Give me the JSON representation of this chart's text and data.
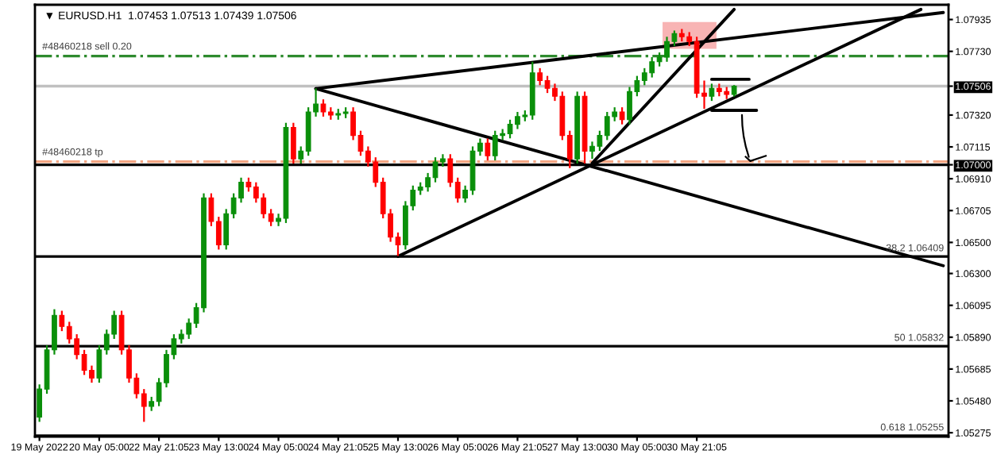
{
  "chart_data": {
    "type": "candlestick",
    "title": "▼ EURUSD.H1  1.07453 1.07513 1.07439 1.07506",
    "categories": [
      "19 May 2022",
      null,
      null,
      null,
      null,
      null,
      null,
      null,
      "20 May 05:00",
      null,
      null,
      null,
      null,
      null,
      null,
      null,
      "22 May 21:05",
      null,
      null,
      null,
      null,
      null,
      null,
      null,
      "23 May 13:00",
      null,
      null,
      null,
      null,
      null,
      null,
      null,
      "24 May 05:00",
      null,
      null,
      null,
      null,
      null,
      null,
      null,
      "24 May 21:05",
      null,
      null,
      null,
      null,
      null,
      null,
      null,
      "25 May 13:00",
      null,
      null,
      null,
      null,
      null,
      null,
      null,
      "26 May 05:00",
      null,
      null,
      null,
      null,
      null,
      null,
      null,
      "26 May 21:05",
      null,
      null,
      null,
      null,
      null,
      null,
      null,
      "27 May 13:00",
      null,
      null,
      null,
      null,
      null,
      null,
      null,
      "30 May 05:00",
      null,
      null,
      null,
      null,
      null,
      null,
      null,
      "30 May 21:05",
      null,
      null,
      null,
      null,
      null,
      null,
      null,
      null,
      null,
      null,
      null,
      null,
      null,
      null,
      null,
      null,
      null,
      null,
      null,
      null,
      null,
      null,
      null,
      null,
      null,
      null,
      null,
      null,
      null,
      null,
      null,
      null,
      null
    ],
    "ohlc": [
      [
        1.05375,
        1.05586,
        1.05345,
        1.05556
      ],
      [
        1.05556,
        1.05838,
        1.05526,
        1.05808
      ],
      [
        1.05808,
        1.0607,
        1.05778,
        1.0603
      ],
      [
        1.0603,
        1.0606,
        1.05929,
        1.05959
      ],
      [
        1.05959,
        1.05989,
        1.05849,
        1.05879
      ],
      [
        1.05879,
        1.05909,
        1.05748,
        1.05778
      ],
      [
        1.05778,
        1.05808,
        1.05647,
        1.05677
      ],
      [
        1.05677,
        1.05707,
        1.05597,
        1.05627
      ],
      [
        1.05627,
        1.05838,
        1.05597,
        1.05808
      ],
      [
        1.05808,
        1.05939,
        1.05778,
        1.05909
      ],
      [
        1.05909,
        1.0606,
        1.05879,
        1.0603
      ],
      [
        1.0603,
        1.0606,
        1.05778,
        1.05808
      ],
      [
        1.05808,
        1.05838,
        1.05597,
        1.05627
      ],
      [
        1.05627,
        1.05657,
        1.05496,
        1.05526
      ],
      [
        1.05526,
        1.05556,
        1.05345,
        1.05445
      ],
      [
        1.05445,
        1.05506,
        1.05415,
        1.05476
      ],
      [
        1.05476,
        1.05627,
        1.05446,
        1.05597
      ],
      [
        1.05597,
        1.05808,
        1.05567,
        1.05778
      ],
      [
        1.05778,
        1.05909,
        1.05748,
        1.05879
      ],
      [
        1.05879,
        1.05939,
        1.05849,
        1.05909
      ],
      [
        1.05909,
        1.0601,
        1.05879,
        1.0598
      ],
      [
        1.0598,
        1.0611,
        1.0595,
        1.0608
      ],
      [
        1.0608,
        1.06816,
        1.0605,
        1.06786
      ],
      [
        1.06786,
        1.06816,
        1.06605,
        1.06635
      ],
      [
        1.06635,
        1.06665,
        1.06454,
        1.06484
      ],
      [
        1.06484,
        1.06715,
        1.06454,
        1.06685
      ],
      [
        1.06685,
        1.06816,
        1.06655,
        1.06786
      ],
      [
        1.06786,
        1.06917,
        1.06756,
        1.06887
      ],
      [
        1.06887,
        1.06917,
        1.06827,
        1.06857
      ],
      [
        1.06857,
        1.06887,
        1.06756,
        1.06786
      ],
      [
        1.06786,
        1.06816,
        1.06655,
        1.06685
      ],
      [
        1.06685,
        1.06715,
        1.06605,
        1.06635
      ],
      [
        1.06635,
        1.06685,
        1.06605,
        1.06655
      ],
      [
        1.06655,
        1.0727,
        1.06625,
        1.0724
      ],
      [
        1.0724,
        1.0727,
        1.07008,
        1.07038
      ],
      [
        1.07038,
        1.07118,
        1.07008,
        1.07088
      ],
      [
        1.07088,
        1.0737,
        1.07058,
        1.0734
      ],
      [
        1.0734,
        1.07492,
        1.0731,
        1.07391
      ],
      [
        1.07391,
        1.07421,
        1.0731,
        1.0734
      ],
      [
        1.0734,
        1.0737,
        1.0729,
        1.0732
      ],
      [
        1.0732,
        1.0736,
        1.0729,
        1.0733
      ],
      [
        1.0733,
        1.0737,
        1.073,
        1.0734
      ],
      [
        1.0734,
        1.0737,
        1.07159,
        1.07189
      ],
      [
        1.07189,
        1.07219,
        1.07058,
        1.07088
      ],
      [
        1.07088,
        1.07118,
        1.06988,
        1.07018
      ],
      [
        1.07018,
        1.07048,
        1.06857,
        1.06887
      ],
      [
        1.06887,
        1.06917,
        1.06655,
        1.06685
      ],
      [
        1.06685,
        1.06715,
        1.06504,
        1.06534
      ],
      [
        1.06534,
        1.06564,
        1.06413,
        1.06484
      ],
      [
        1.06484,
        1.06766,
        1.06454,
        1.06736
      ],
      [
        1.06736,
        1.06866,
        1.06706,
        1.06836
      ],
      [
        1.06836,
        1.06887,
        1.06806,
        1.06857
      ],
      [
        1.06857,
        1.06947,
        1.06827,
        1.06917
      ],
      [
        1.06917,
        1.07048,
        1.06887,
        1.07018
      ],
      [
        1.07018,
        1.07068,
        1.06988,
        1.07038
      ],
      [
        1.07038,
        1.07068,
        1.06857,
        1.06887
      ],
      [
        1.06887,
        1.06917,
        1.06756,
        1.06786
      ],
      [
        1.06786,
        1.06866,
        1.06756,
        1.06836
      ],
      [
        1.06836,
        1.07118,
        1.06806,
        1.07088
      ],
      [
        1.07088,
        1.07169,
        1.07058,
        1.07139
      ],
      [
        1.07139,
        1.07169,
        1.07028,
        1.07058
      ],
      [
        1.07058,
        1.07219,
        1.07028,
        1.07189
      ],
      [
        1.07189,
        1.0723,
        1.07159,
        1.072
      ],
      [
        1.072,
        1.0729,
        1.0717,
        1.0726
      ],
      [
        1.0726,
        1.0734,
        1.0723,
        1.0731
      ],
      [
        1.0731,
        1.0735,
        1.0728,
        1.0732
      ],
      [
        1.0732,
        1.07663,
        1.0729,
        1.07592
      ],
      [
        1.07592,
        1.07622,
        1.07512,
        1.07542
      ],
      [
        1.07542,
        1.07572,
        1.07462,
        1.07492
      ],
      [
        1.07492,
        1.07522,
        1.07411,
        1.07441
      ],
      [
        1.07441,
        1.07471,
        1.07159,
        1.07189
      ],
      [
        1.07189,
        1.07219,
        1.06978,
        1.07038
      ],
      [
        1.07038,
        1.07471,
        1.07008,
        1.07441
      ],
      [
        1.07441,
        1.07471,
        1.07008,
        1.07088
      ],
      [
        1.07088,
        1.07149,
        1.07038,
        1.07119
      ],
      [
        1.07119,
        1.07219,
        1.07089,
        1.07189
      ],
      [
        1.07189,
        1.0734,
        1.07159,
        1.0731
      ],
      [
        1.0731,
        1.0737,
        1.0728,
        1.0734
      ],
      [
        1.0734,
        1.0737,
        1.0726,
        1.0729
      ],
      [
        1.0729,
        1.07501,
        1.0726,
        1.07471
      ],
      [
        1.07471,
        1.07572,
        1.07441,
        1.07542
      ],
      [
        1.07542,
        1.07622,
        1.07512,
        1.07592
      ],
      [
        1.07592,
        1.07693,
        1.07562,
        1.07663
      ],
      [
        1.07663,
        1.07723,
        1.07633,
        1.07693
      ],
      [
        1.07693,
        1.07824,
        1.07663,
        1.07794
      ],
      [
        1.07794,
        1.07864,
        1.07764,
        1.07844
      ],
      [
        1.07844,
        1.07874,
        1.07794,
        1.07824
      ],
      [
        1.07824,
        1.07854,
        1.07764,
        1.07794
      ],
      [
        1.07794,
        1.07824,
        1.07431,
        1.07461
      ],
      [
        1.07461,
        1.07542,
        1.0736,
        1.07441
      ],
      [
        1.07441,
        1.07522,
        1.07411,
        1.07492
      ],
      [
        1.07492,
        1.07522,
        1.07441,
        1.07471
      ],
      [
        1.07471,
        1.07501,
        1.07423,
        1.07453
      ],
      [
        1.07453,
        1.07513,
        1.07439,
        1.07506
      ],
      null,
      null,
      null,
      null,
      null,
      null,
      null,
      null,
      null,
      null,
      null,
      null,
      null,
      null,
      null,
      null,
      null,
      null,
      null,
      null,
      null,
      null,
      null,
      null,
      null,
      null,
      null,
      null
    ],
    "colors": [
      "#0a8f0a",
      "#0a8f0a",
      "#0a8f0a",
      "#ff0000",
      "#ff0000",
      "#ff0000",
      "#ff0000",
      "#ff0000",
      "#0a8f0a",
      "#0a8f0a",
      "#0a8f0a",
      "#ff0000",
      "#ff0000",
      "#ff0000",
      "#ff0000",
      "#0a8f0a",
      "#0a8f0a",
      "#0a8f0a",
      "#0a8f0a",
      "#0a8f0a",
      "#0a8f0a",
      "#0a8f0a",
      "#0a8f0a",
      "#ff0000",
      "#ff0000",
      "#0a8f0a",
      "#0a8f0a",
      "#0a8f0a",
      "#ff0000",
      "#ff0000",
      "#ff0000",
      "#ff0000",
      "#0a8f0a",
      "#0a8f0a",
      "#ff0000",
      "#0a8f0a",
      "#0a8f0a",
      "#0a8f0a",
      "#ff0000",
      "#ff0000",
      "#0a8f0a",
      "#0a8f0a",
      "#ff0000",
      "#ff0000",
      "#ff0000",
      "#ff0000",
      "#ff0000",
      "#ff0000",
      "#ff0000",
      "#0a8f0a",
      "#0a8f0a",
      "#0a8f0a",
      "#0a8f0a",
      "#0a8f0a",
      "#0a8f0a",
      "#ff0000",
      "#ff0000",
      "#0a8f0a",
      "#0a8f0a",
      "#0a8f0a",
      "#ff0000",
      "#0a8f0a",
      "#0a8f0a",
      "#0a8f0a",
      "#0a8f0a",
      "#0a8f0a",
      "#0a8f0a",
      "#ff0000",
      "#ff0000",
      "#ff0000",
      "#ff0000",
      "#ff0000",
      "#0a8f0a",
      "#ff0000",
      "#0a8f0a",
      "#0a8f0a",
      "#0a8f0a",
      "#0a8f0a",
      "#ff0000",
      "#0a8f0a",
      "#0a8f0a",
      "#0a8f0a",
      "#0a8f0a",
      "#0a8f0a",
      "#0a8f0a",
      "#0a8f0a",
      "#ff0000",
      "#ff0000",
      "#ff0000",
      "#ff0000",
      "#0a8f0a",
      "#ff0000",
      "#ff0000",
      "#0a8f0a",
      null,
      null,
      null,
      null,
      null,
      null,
      null,
      null,
      null,
      null,
      null,
      null,
      null,
      null,
      null,
      null,
      null,
      null,
      null,
      null,
      null,
      null,
      null,
      null,
      null,
      null,
      null,
      null
    ],
    "series": [
      {
        "type": "line",
        "color": "#000000",
        "values": [
          null,
          null,
          null,
          null,
          null,
          null,
          null,
          null,
          null,
          null,
          null,
          null,
          null,
          null,
          null,
          null,
          null,
          null,
          null,
          null,
          null,
          null,
          null,
          null,
          null,
          null,
          null,
          null,
          null,
          null,
          null,
          null,
          null,
          null,
          null,
          null,
          null,
          1.0749,
          null,
          null,
          null,
          null,
          null,
          null,
          null,
          null,
          null,
          null,
          null,
          null,
          null,
          null,
          null,
          null,
          null,
          null,
          null,
          null,
          null,
          null,
          null,
          null,
          null,
          null,
          null,
          null,
          null,
          null,
          null,
          null,
          null,
          null,
          null,
          null,
          null,
          null,
          null,
          null,
          null,
          null,
          null,
          null,
          null,
          null,
          null,
          null,
          null,
          null,
          null,
          null,
          null,
          null,
          null,
          null,
          null,
          null,
          null,
          null,
          null,
          null,
          null,
          null,
          null,
          null,
          null,
          null,
          null,
          null,
          null,
          null,
          null,
          null,
          null,
          null,
          null,
          null,
          null,
          null,
          null,
          null,
          null,
          1.0798
        ]
      },
      {
        "type": "line",
        "color": "#000000",
        "values": [
          null,
          null,
          null,
          null,
          null,
          null,
          null,
          null,
          null,
          null,
          null,
          null,
          null,
          null,
          null,
          null,
          null,
          null,
          null,
          null,
          null,
          null,
          null,
          null,
          null,
          null,
          null,
          null,
          null,
          null,
          null,
          null,
          null,
          null,
          null,
          null,
          null,
          1.0749,
          null,
          null,
          null,
          null,
          null,
          null,
          null,
          null,
          null,
          null,
          null,
          null,
          null,
          null,
          null,
          null,
          null,
          null,
          null,
          null,
          null,
          null,
          null,
          null,
          null,
          null,
          null,
          null,
          null,
          null,
          null,
          null,
          null,
          null,
          null,
          null,
          null,
          null,
          null,
          null,
          null,
          null,
          null,
          null,
          null,
          null,
          null,
          null,
          null,
          null,
          null,
          null,
          null,
          null,
          null,
          null,
          null,
          null,
          null,
          null,
          null,
          null,
          null,
          null,
          null,
          null,
          null,
          null,
          null,
          null,
          null,
          null,
          null,
          null,
          null,
          null,
          null,
          null,
          null,
          null,
          null,
          null,
          null,
          1.0635
        ]
      },
      {
        "type": "line",
        "color": "#000000",
        "values": [
          null,
          null,
          null,
          null,
          null,
          null,
          null,
          null,
          null,
          null,
          null,
          null,
          null,
          null,
          null,
          null,
          null,
          null,
          null,
          null,
          null,
          null,
          null,
          null,
          null,
          null,
          null,
          null,
          null,
          null,
          null,
          null,
          null,
          null,
          null,
          null,
          null,
          null,
          null,
          null,
          null,
          null,
          null,
          null,
          null,
          null,
          null,
          null,
          1.0641,
          null,
          null,
          null,
          null,
          null,
          null,
          null,
          null,
          null,
          null,
          null,
          null,
          null,
          null,
          null,
          null,
          null,
          null,
          null,
          null,
          null,
          null,
          null,
          null,
          null,
          null,
          null,
          null,
          null,
          null,
          null,
          null,
          null,
          null,
          null,
          null,
          null,
          null,
          null,
          null,
          null,
          null,
          null,
          null,
          null,
          null,
          null,
          null,
          null,
          null,
          null,
          null,
          null,
          null,
          null,
          null,
          null,
          null,
          null,
          null,
          null,
          null,
          null,
          null,
          null,
          null,
          null,
          null,
          null,
          1.08,
          null,
          null,
          null
        ]
      },
      {
        "type": "line",
        "color": "#000000",
        "values": [
          null,
          null,
          null,
          null,
          null,
          null,
          null,
          null,
          null,
          null,
          null,
          null,
          null,
          null,
          null,
          null,
          null,
          null,
          null,
          null,
          null,
          null,
          null,
          null,
          null,
          null,
          null,
          null,
          null,
          null,
          null,
          null,
          null,
          null,
          null,
          null,
          null,
          null,
          null,
          null,
          null,
          null,
          null,
          null,
          null,
          null,
          null,
          null,
          null,
          null,
          null,
          null,
          null,
          null,
          null,
          null,
          null,
          null,
          null,
          null,
          null,
          null,
          null,
          null,
          null,
          null,
          null,
          null,
          null,
          null,
          null,
          null,
          null,
          null,
          1.0701,
          null,
          null,
          null,
          null,
          null,
          null,
          null,
          null,
          null,
          null,
          null,
          null,
          null,
          null,
          null,
          null,
          null,
          null,
          1.08,
          null,
          null,
          null,
          null,
          null,
          null,
          null,
          null,
          null,
          null,
          null,
          null,
          null,
          null,
          null,
          null,
          null,
          null,
          null,
          null,
          null,
          null,
          null,
          null,
          null,
          null,
          null,
          null
        ]
      },
      {
        "type": "line",
        "color": "#000000",
        "values": [
          null,
          null,
          null,
          null,
          null,
          null,
          null,
          null,
          null,
          null,
          null,
          null,
          null,
          null,
          null,
          null,
          null,
          null,
          null,
          null,
          null,
          null,
          null,
          null,
          null,
          null,
          null,
          null,
          null,
          null,
          null,
          null,
          null,
          null,
          null,
          null,
          null,
          null,
          null,
          null,
          null,
          null,
          null,
          null,
          null,
          null,
          null,
          null,
          null,
          null,
          null,
          null,
          null,
          null,
          null,
          null,
          null,
          null,
          null,
          null,
          null,
          null,
          null,
          null,
          null,
          null,
          null,
          null,
          null,
          null,
          null,
          null,
          null,
          null,
          null,
          null,
          null,
          null,
          null,
          null,
          null,
          null,
          null,
          null,
          null,
          null,
          null,
          null,
          null,
          null,
          1.0755,
          null,
          null,
          null,
          null,
          1.0755,
          null,
          null,
          null,
          null,
          null,
          null,
          null,
          null,
          null,
          null,
          null,
          null,
          null,
          null,
          null,
          null,
          null,
          null,
          null,
          null,
          null,
          null,
          null,
          null,
          null,
          null
        ]
      },
      {
        "type": "line",
        "color": "#000000",
        "values": [
          null,
          null,
          null,
          null,
          null,
          null,
          null,
          null,
          null,
          null,
          null,
          null,
          null,
          null,
          null,
          null,
          null,
          null,
          null,
          null,
          null,
          null,
          null,
          null,
          null,
          null,
          null,
          null,
          null,
          null,
          null,
          null,
          null,
          null,
          null,
          null,
          null,
          null,
          null,
          null,
          null,
          null,
          null,
          null,
          null,
          null,
          null,
          null,
          null,
          null,
          null,
          null,
          null,
          null,
          null,
          null,
          null,
          null,
          null,
          null,
          null,
          null,
          null,
          null,
          null,
          null,
          null,
          null,
          null,
          null,
          null,
          null,
          null,
          null,
          null,
          null,
          null,
          null,
          null,
          null,
          null,
          null,
          null,
          null,
          null,
          null,
          null,
          null,
          null,
          null,
          1.0735,
          null,
          null,
          null,
          null,
          null,
          1.0735,
          null,
          null,
          null,
          null,
          null,
          null,
          null,
          null,
          null,
          null,
          null,
          null,
          null,
          null,
          null,
          null,
          null,
          null,
          null,
          null,
          null,
          null,
          null,
          null,
          null
        ]
      }
    ],
    "ref_lines": [
      {
        "axis": "y",
        "value": 1.077,
        "label": "#48460218 sell 0.20",
        "color": "#2e8b2e",
        "line_style": "dashdot"
      },
      {
        "axis": "y",
        "value": 1.07506,
        "color": "#c0c0c0",
        "line_style": "solid"
      },
      {
        "axis": "y",
        "value": 1.07,
        "color": "#000000",
        "line_style": "solid"
      },
      {
        "axis": "y",
        "value": 1.0702,
        "label": "#48460218 tp",
        "color": "#f4a582",
        "line_style": "dashdot"
      },
      {
        "axis": "y",
        "value": 1.06409,
        "label": "38.2 1.06409",
        "color": "#000000",
        "line_style": "solid"
      },
      {
        "axis": "y",
        "value": 1.05832,
        "label": "50 1.05832",
        "color": "#000000",
        "line_style": "solid"
      },
      {
        "axis": "y",
        "value": 1.05255,
        "label": "0.618 1.05255",
        "color": "#000000",
        "line_style": "solid"
      }
    ],
    "ylim": [
      1.0525,
      1.0803
    ],
    "yticks": [
      {
        "value": 1.07935,
        "label": "1.07935"
      },
      {
        "value": 1.0773,
        "label": "1.07730"
      },
      {
        "value": 1.07506,
        "label": "1.07506"
      },
      {
        "value": 1.0732,
        "label": "1.07320"
      },
      {
        "value": 1.07115,
        "label": "1.07115"
      },
      {
        "value": 1.07,
        "label": "1.07000"
      },
      {
        "value": 1.0691,
        "label": "1.06910"
      },
      {
        "value": 1.06705,
        "label": "1.06705"
      },
      {
        "value": 1.065,
        "label": "1.06500"
      },
      {
        "value": 1.063,
        "label": "1.06300"
      },
      {
        "value": 1.06095,
        "label": "1.06095"
      },
      {
        "value": 1.0589,
        "label": "1.05890"
      },
      {
        "value": 1.05685,
        "label": "1.05685"
      },
      {
        "value": 1.0548,
        "label": "1.05480"
      },
      {
        "value": 1.05275,
        "label": "1.05275"
      }
    ]
  }
}
